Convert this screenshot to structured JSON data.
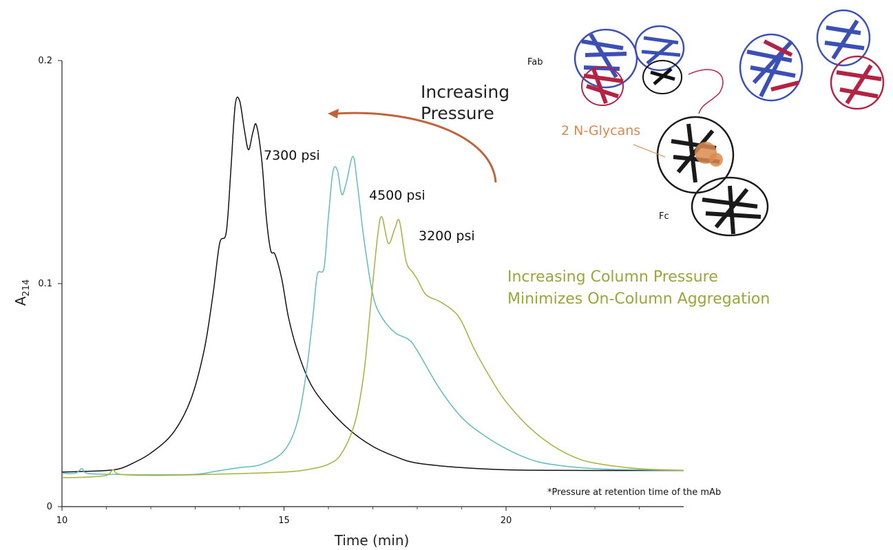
{
  "chart_data": {
    "type": "line",
    "xlabel": "Time (min)",
    "ylabel_main": "A",
    "ylabel_sub": "214",
    "xlim": [
      10,
      24
    ],
    "ylim": [
      0,
      0.2
    ],
    "xticks": [
      10,
      15,
      20
    ],
    "yticks": [
      0,
      0.1,
      0.2
    ],
    "xtick_labels": [
      "10",
      "15",
      "20"
    ],
    "ytick_labels": [
      "0",
      "0.1",
      "0.2"
    ],
    "grid": false,
    "series": [
      {
        "name": "7300 psi",
        "color": "#111111",
        "points": [
          [
            10,
            0.0155
          ],
          [
            10.5,
            0.0158
          ],
          [
            11,
            0.0162
          ],
          [
            11.3,
            0.017
          ],
          [
            11.6,
            0.0195
          ],
          [
            12,
            0.024
          ],
          [
            12.5,
            0.033
          ],
          [
            12.9,
            0.048
          ],
          [
            13.2,
            0.07
          ],
          [
            13.4,
            0.095
          ],
          [
            13.55,
            0.118
          ],
          [
            13.7,
            0.123
          ],
          [
            13.8,
            0.15
          ],
          [
            13.9,
            0.18
          ],
          [
            14.0,
            0.182
          ],
          [
            14.1,
            0.17
          ],
          [
            14.2,
            0.16
          ],
          [
            14.3,
            0.168
          ],
          [
            14.38,
            0.171
          ],
          [
            14.5,
            0.155
          ],
          [
            14.6,
            0.13
          ],
          [
            14.7,
            0.115
          ],
          [
            14.8,
            0.113
          ],
          [
            14.95,
            0.102
          ],
          [
            15.1,
            0.085
          ],
          [
            15.3,
            0.07
          ],
          [
            15.6,
            0.055
          ],
          [
            16.0,
            0.044
          ],
          [
            16.5,
            0.034
          ],
          [
            17.0,
            0.027
          ],
          [
            17.5,
            0.0225
          ],
          [
            18.0,
            0.0195
          ],
          [
            19.0,
            0.0175
          ],
          [
            20.0,
            0.0165
          ],
          [
            21.0,
            0.0163
          ],
          [
            22.0,
            0.0162
          ],
          [
            23.0,
            0.0162
          ],
          [
            24.0,
            0.0162
          ]
        ]
      },
      {
        "name": "4500 psi",
        "color": "#5fbcbc",
        "points": [
          [
            10,
            0.015
          ],
          [
            10.3,
            0.015
          ],
          [
            10.45,
            0.017
          ],
          [
            10.55,
            0.015
          ],
          [
            11,
            0.0145
          ],
          [
            12,
            0.0143
          ],
          [
            13,
            0.0145
          ],
          [
            13.5,
            0.016
          ],
          [
            14,
            0.0175
          ],
          [
            14.5,
            0.019
          ],
          [
            15,
            0.025
          ],
          [
            15.3,
            0.038
          ],
          [
            15.5,
            0.06
          ],
          [
            15.65,
            0.085
          ],
          [
            15.75,
            0.104
          ],
          [
            15.9,
            0.107
          ],
          [
            16.0,
            0.13
          ],
          [
            16.1,
            0.15
          ],
          [
            16.2,
            0.151
          ],
          [
            16.3,
            0.14
          ],
          [
            16.4,
            0.145
          ],
          [
            16.55,
            0.157
          ],
          [
            16.65,
            0.145
          ],
          [
            16.8,
            0.12
          ],
          [
            17.0,
            0.095
          ],
          [
            17.2,
            0.085
          ],
          [
            17.5,
            0.078
          ],
          [
            17.8,
            0.075
          ],
          [
            18.0,
            0.07
          ],
          [
            18.5,
            0.053
          ],
          [
            19.0,
            0.04
          ],
          [
            19.5,
            0.032
          ],
          [
            20.0,
            0.026
          ],
          [
            20.5,
            0.0215
          ],
          [
            21.0,
            0.019
          ],
          [
            22.0,
            0.017
          ],
          [
            23.0,
            0.0165
          ],
          [
            24.0,
            0.0162
          ]
        ]
      },
      {
        "name": "3200 psi",
        "color": "#a8b03a",
        "points": [
          [
            10,
            0.013
          ],
          [
            10.5,
            0.0132
          ],
          [
            11,
            0.014
          ],
          [
            11.15,
            0.0165
          ],
          [
            11.3,
            0.0145
          ],
          [
            12,
            0.014
          ],
          [
            13,
            0.0143
          ],
          [
            14,
            0.0148
          ],
          [
            15,
            0.0155
          ],
          [
            15.5,
            0.0165
          ],
          [
            16,
            0.019
          ],
          [
            16.3,
            0.024
          ],
          [
            16.6,
            0.038
          ],
          [
            16.8,
            0.06
          ],
          [
            16.95,
            0.09
          ],
          [
            17.1,
            0.12
          ],
          [
            17.2,
            0.13
          ],
          [
            17.35,
            0.118
          ],
          [
            17.5,
            0.125
          ],
          [
            17.6,
            0.128
          ],
          [
            17.75,
            0.11
          ],
          [
            17.9,
            0.105
          ],
          [
            18.0,
            0.102
          ],
          [
            18.2,
            0.095
          ],
          [
            18.5,
            0.092
          ],
          [
            18.8,
            0.088
          ],
          [
            19.0,
            0.083
          ],
          [
            19.3,
            0.07
          ],
          [
            19.7,
            0.056
          ],
          [
            20.0,
            0.047
          ],
          [
            20.5,
            0.036
          ],
          [
            21.0,
            0.028
          ],
          [
            21.5,
            0.0225
          ],
          [
            22.0,
            0.0195
          ],
          [
            23.0,
            0.017
          ],
          [
            24.0,
            0.0163
          ]
        ]
      }
    ],
    "annotations": {
      "label_7300": "7300 psi",
      "label_4500": "4500 psi",
      "label_3200": "3200 psi",
      "increasing_line1": "Increasing",
      "increasing_line2": "Pressure",
      "aggregation_line1": "Increasing Column Pressure",
      "aggregation_line2": "Minimizes On-Column Aggregation",
      "footnote": "*Pressure at retention time of the mAb",
      "fab": "Fab",
      "fc": "Fc",
      "glycans": "2 N-Glycans"
    },
    "colors": {
      "arrow": "#c0633a",
      "glycan": "#d98a4e",
      "aggregation_text": "#9aa63a",
      "fab_blue": "#3b4fb5",
      "fab_red": "#b32343",
      "fc_black": "#1a1a1a"
    }
  }
}
